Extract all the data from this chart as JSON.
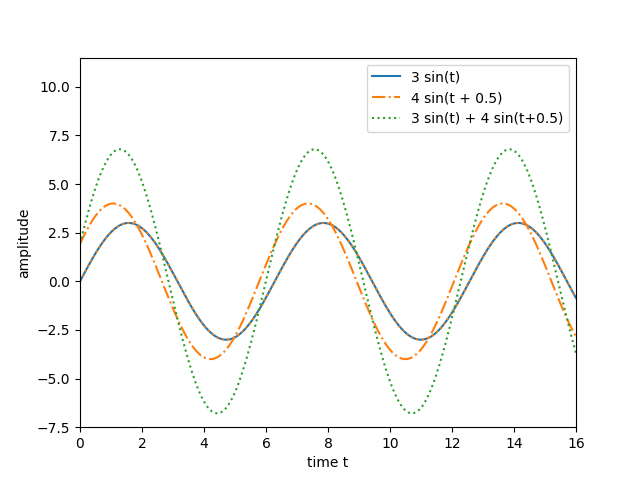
{
  "xlabel": "time t",
  "ylabel": "amplitude",
  "xlim": [
    0,
    16
  ],
  "ylim": [
    -7.5,
    11.5
  ],
  "t_start": 0,
  "t_end": 16,
  "t_points": 1000,
  "A1": 3,
  "A2": 4,
  "phi2": 0.5,
  "line1_label": "3 sin(t)",
  "line2_label": "4 sin(t + 0.5)",
  "line3_label": "3 sin(t) + 4 sin(t+0.5)",
  "line1_color": "#1f77b4",
  "line2_color": "#ff7f0e",
  "line3_color": "#2ca02c",
  "line1_lw": 1.5,
  "line2_lw": 1.5,
  "line3_lw": 1.5,
  "xticks": [
    0,
    2,
    4,
    6,
    8,
    10,
    12,
    14,
    16
  ],
  "figsize": [
    6.4,
    4.8
  ],
  "dpi": 100
}
